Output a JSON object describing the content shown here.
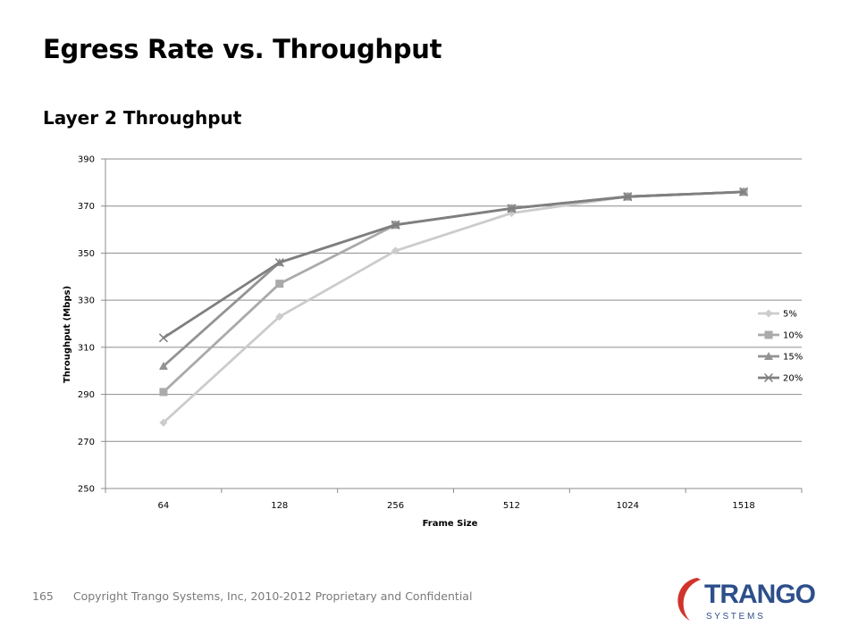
{
  "slide": {
    "title": "Egress Rate vs. Throughput",
    "subtitle": "Layer 2 Throughput"
  },
  "footer": {
    "page_number": "165",
    "text": "Copyright Trango Systems, Inc, 2010-2012  Proprietary and Confidential"
  },
  "logo": {
    "brand": "TRANGO",
    "tagline": "S Y S T E M S",
    "colors": {
      "brand_blue": "#2d4f8b",
      "swoosh_red": "#d1342b"
    }
  },
  "chart_data": {
    "type": "line",
    "xlabel": "Frame Size",
    "ylabel": "Throughput (Mbps)",
    "categories": [
      "64",
      "128",
      "256",
      "512",
      "1024",
      "1518"
    ],
    "ylim": [
      250,
      390
    ],
    "yticks": [
      250,
      270,
      290,
      310,
      330,
      350,
      370,
      390
    ],
    "grid": true,
    "legend": "right",
    "series": [
      {
        "name": "5%",
        "values": [
          278,
          323,
          351,
          367,
          374,
          376
        ],
        "color": "#cccccc",
        "marker": "diamond"
      },
      {
        "name": "10%",
        "values": [
          291,
          337,
          362,
          369,
          374,
          376
        ],
        "color": "#aaaaaa",
        "marker": "square"
      },
      {
        "name": "15%",
        "values": [
          302,
          346,
          362,
          369,
          374,
          376
        ],
        "color": "#939393",
        "marker": "triangle"
      },
      {
        "name": "20%",
        "values": [
          314,
          346,
          362,
          369,
          374,
          376
        ],
        "color": "#7f7f7f",
        "marker": "x"
      }
    ]
  }
}
